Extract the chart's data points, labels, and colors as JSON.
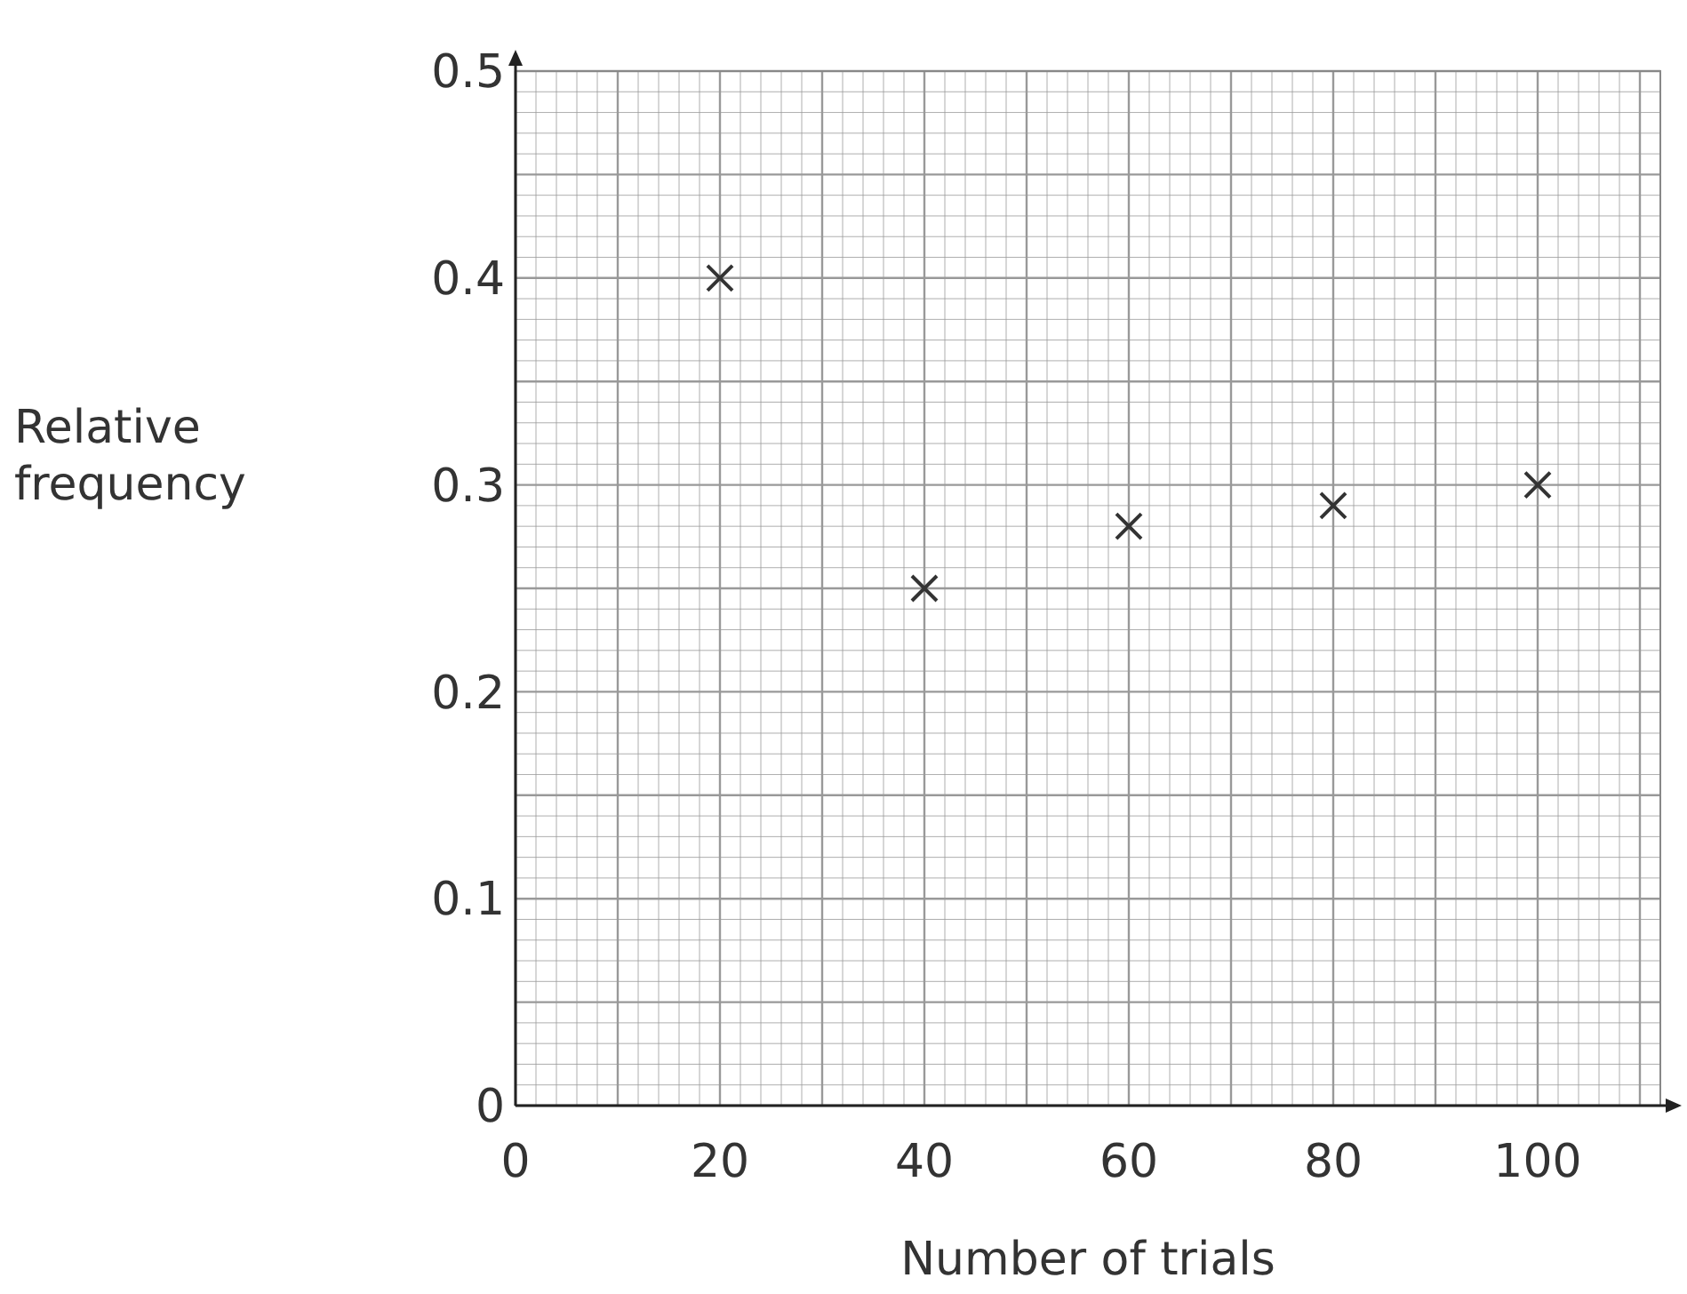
{
  "chart_data": {
    "type": "scatter",
    "xlabel": "Number of trials",
    "ylabel": "Relative\nfrequency",
    "x": [
      20,
      40,
      60,
      80,
      100
    ],
    "series": [
      {
        "color": "#333333",
        "values": [
          0.4,
          0.25,
          0.28,
          0.29,
          0.3
        ]
      }
    ],
    "xlim": [
      0,
      112
    ],
    "xticks": [
      0,
      20,
      40,
      60,
      80,
      100
    ],
    "ylim": [
      0,
      0.5
    ],
    "yticks": [
      0,
      0.1,
      0.2,
      0.3,
      0.4,
      0.5
    ],
    "grid": true,
    "marker": "cross"
  }
}
